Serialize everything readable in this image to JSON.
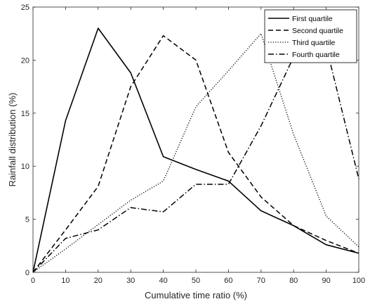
{
  "chart_data": {
    "type": "line",
    "title": "",
    "xlabel": "Cumulative time ratio (%)",
    "ylabel": "Rainfall distribution (%)",
    "xlim": [
      0,
      100
    ],
    "ylim": [
      0,
      25
    ],
    "xticks": [
      0,
      10,
      20,
      30,
      40,
      50,
      60,
      70,
      80,
      90,
      100
    ],
    "yticks": [
      0,
      5,
      10,
      15,
      20,
      25
    ],
    "x": [
      0,
      10,
      20,
      30,
      40,
      50,
      60,
      70,
      80,
      90,
      100
    ],
    "grid": false,
    "legend_position": "top-right",
    "series": [
      {
        "name": "First quartile",
        "style": "solid",
        "color": "#000000",
        "values": [
          0,
          14.3,
          23.0,
          18.8,
          10.9,
          9.7,
          8.6,
          5.8,
          4.4,
          2.6,
          1.8
        ]
      },
      {
        "name": "Second quartile",
        "style": "dashed",
        "color": "#000000",
        "values": [
          0,
          4.0,
          8.1,
          17.5,
          22.3,
          20.0,
          11.3,
          7.1,
          4.4,
          3.0,
          1.8
        ]
      },
      {
        "name": "Third quartile",
        "style": "dotted",
        "color": "#000000",
        "values": [
          0,
          2.2,
          4.5,
          6.8,
          8.6,
          15.6,
          19.0,
          22.5,
          13.0,
          5.3,
          2.4
        ]
      },
      {
        "name": "Fourth quartile",
        "style": "dashdot",
        "color": "#000000",
        "values": [
          0,
          3.2,
          4.0,
          6.1,
          5.7,
          8.3,
          8.3,
          13.8,
          20.3,
          21.3,
          8.8
        ]
      }
    ]
  }
}
